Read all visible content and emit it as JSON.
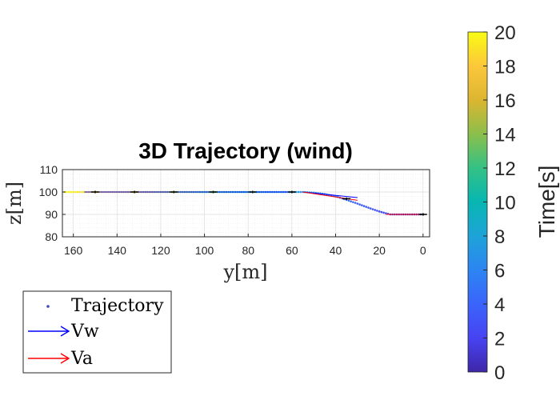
{
  "chart_data": {
    "type": "scatter",
    "title": "3D Trajectory (wind)",
    "xlabel": "y[m]",
    "ylabel": "z[m]",
    "xlim": [
      165,
      -3
    ],
    "ylim": [
      80,
      110
    ],
    "x_reversed": true,
    "x_ticks": [
      "160",
      "140",
      "120",
      "100",
      "80",
      "60",
      "40",
      "20",
      "0"
    ],
    "y_ticks": [
      "110",
      "100",
      "90",
      "80"
    ],
    "grid": true,
    "minor_grid": true,
    "series": [
      {
        "name": "Trajectory",
        "y_m": [
          0,
          5,
          10,
          15,
          20,
          25,
          30,
          35,
          40,
          45,
          50,
          55,
          60,
          65,
          70,
          75,
          80,
          85,
          90,
          95,
          100,
          105,
          110,
          115,
          120,
          125,
          130,
          135,
          140,
          145,
          150,
          155,
          160,
          165
        ],
        "z_m": [
          90,
          90,
          90,
          90,
          91.3,
          93,
          94.8,
          96.5,
          98.1,
          99.1,
          99.7,
          100,
          100,
          100,
          100,
          100,
          100,
          100,
          100,
          100,
          100,
          100,
          100,
          100,
          100,
          100,
          100,
          100,
          100,
          100,
          100,
          100,
          100,
          100
        ],
        "time_s": [
          0.3,
          0.9,
          1.5,
          2.1,
          2.6,
          3.2,
          3.8,
          4.4,
          5,
          5.6,
          6.2,
          6.8,
          7.4,
          8,
          8.6,
          9.2,
          9.8,
          10.4,
          11,
          11.6,
          12.2,
          12.8,
          13.4,
          14,
          14.6,
          15.2,
          15.8,
          16.4,
          17,
          17.6,
          18.2,
          18.8,
          19.4,
          20
        ]
      },
      {
        "name": "Vw",
        "color": "#0000ff",
        "segments": [
          [
            155,
            100,
            62,
            100
          ],
          [
            55,
            100,
            30,
            97.5
          ]
        ]
      },
      {
        "name": "Va",
        "color": "#ff0000",
        "segments": [
          [
            55,
            100,
            30,
            96.3
          ],
          [
            17,
            90,
            -1,
            90
          ]
        ]
      }
    ],
    "markers": {
      "color": "#000000",
      "y_m": [
        150,
        132,
        114,
        96,
        78,
        60,
        35,
        0
      ],
      "z_m": [
        100,
        100,
        100,
        100,
        100,
        100,
        97,
        90
      ]
    },
    "legend": {
      "placement": "bottom-left",
      "entries": [
        "Trajectory",
        "Vw",
        "Va"
      ]
    },
    "colorbar": {
      "label": "Time[s]",
      "range": [
        0,
        20
      ],
      "ticks": [
        "0",
        "2",
        "4",
        "6",
        "8",
        "10",
        "12",
        "14",
        "16",
        "18",
        "20"
      ],
      "colormap": "parula"
    }
  }
}
